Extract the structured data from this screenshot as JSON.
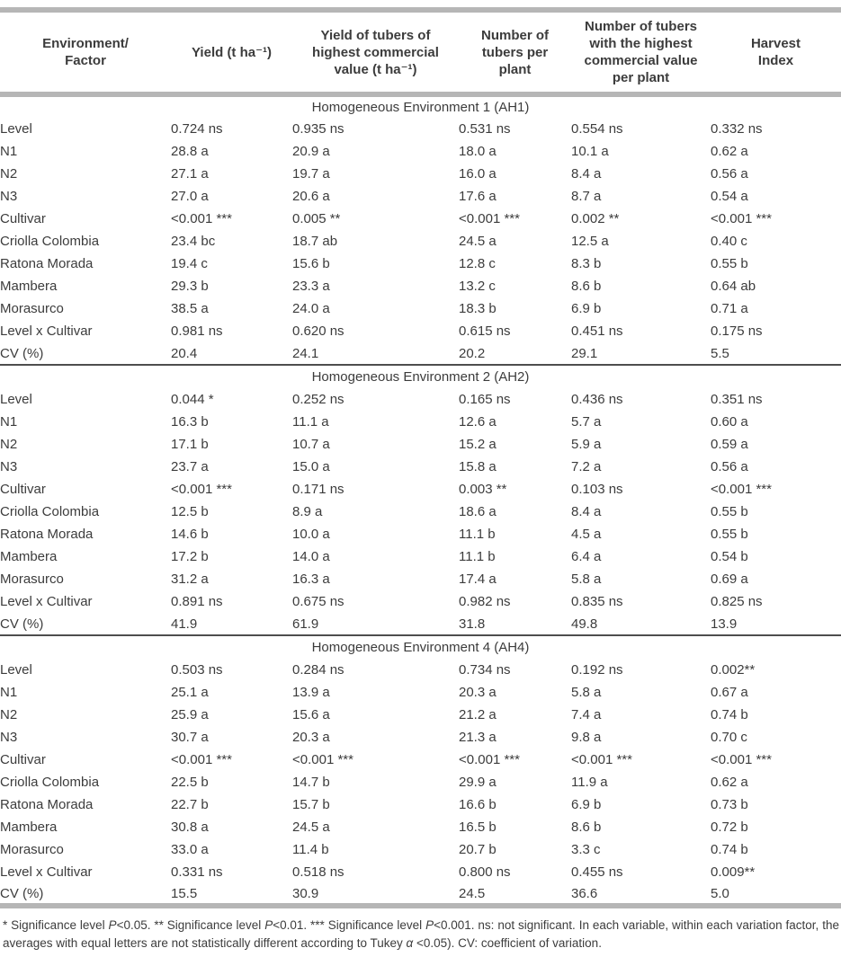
{
  "colors": {
    "text": "#3c3c3c",
    "thick_rule": "#b6b6b6",
    "thin_rule": "#4e4e4e"
  },
  "table": {
    "columns": [
      "Environment/\nFactor",
      "Yield (t ha⁻¹)",
      "Yield of tubers of\nhighest commercial\nvalue (t ha⁻¹)",
      "Number of\ntubers per\nplant",
      "Number of tubers\nwith the highest\ncommercial value\nper plant",
      "Harvest\nIndex"
    ],
    "sections": [
      {
        "title": "Homogeneous Environment 1 (AH1)",
        "rows": [
          [
            "Level",
            "0.724 ns",
            "0.935 ns",
            "0.531 ns",
            "0.554 ns",
            "0.332 ns"
          ],
          [
            "N1",
            "28.8 a",
            "20.9 a",
            "18.0 a",
            "10.1 a",
            "0.62 a"
          ],
          [
            "N2",
            "27.1 a",
            "19.7 a",
            "16.0 a",
            "8.4 a",
            "0.56 a"
          ],
          [
            "N3",
            "27.0 a",
            "20.6 a",
            "17.6 a",
            "8.7 a",
            "0.54 a"
          ],
          [
            "Cultivar",
            "<0.001 ***",
            "0.005 **",
            "<0.001 ***",
            "0.002 **",
            "<0.001 ***"
          ],
          [
            "Criolla Colombia",
            "23.4 bc",
            "18.7 ab",
            "24.5 a",
            "12.5 a",
            "0.40 c"
          ],
          [
            "Ratona Morada",
            "19.4 c",
            "15.6 b",
            "12.8 c",
            "8.3 b",
            "0.55 b"
          ],
          [
            "Mambera",
            "29.3 b",
            "23.3 a",
            "13.2 c",
            "8.6 b",
            "0.64 ab"
          ],
          [
            "Morasurco",
            "38.5 a",
            "24.0 a",
            "18.3 b",
            "6.9 b",
            "0.71 a"
          ],
          [
            "Level x Cultivar",
            "0.981 ns",
            "0.620 ns",
            "0.615 ns",
            "0.451 ns",
            "0.175 ns"
          ],
          [
            "CV (%)",
            "20.4",
            "24.1",
            "20.2",
            "29.1",
            "5.5"
          ]
        ]
      },
      {
        "title": "Homogeneous Environment 2 (AH2)",
        "rows": [
          [
            "Level",
            "0.044 *",
            "0.252 ns",
            "0.165 ns",
            "0.436 ns",
            "0.351 ns"
          ],
          [
            "N1",
            "16.3 b",
            "11.1 a",
            "12.6 a",
            "5.7 a",
            "0.60 a"
          ],
          [
            "N2",
            "17.1 b",
            "10.7 a",
            "15.2 a",
            "5.9 a",
            "0.59 a"
          ],
          [
            "N3",
            "23.7 a",
            "15.0 a",
            "15.8 a",
            "7.2 a",
            "0.56 a"
          ],
          [
            "Cultivar",
            "<0.001 ***",
            "0.171 ns",
            "0.003 **",
            "0.103 ns",
            "<0.001 ***"
          ],
          [
            "Criolla Colombia",
            "12.5 b",
            "8.9 a",
            "18.6 a",
            "8.4 a",
            "0.55 b"
          ],
          [
            "Ratona Morada",
            "14.6 b",
            "10.0 a",
            "11.1 b",
            "4.5 a",
            "0.55 b"
          ],
          [
            "Mambera",
            "17.2 b",
            "14.0 a",
            "11.1 b",
            "6.4 a",
            "0.54 b"
          ],
          [
            "Morasurco",
            "31.2 a",
            "16.3 a",
            "17.4 a",
            "5.8 a",
            "0.69 a"
          ],
          [
            "Level x Cultivar",
            "0.891 ns",
            "0.675 ns",
            "0.982 ns",
            "0.835 ns",
            "0.825 ns"
          ],
          [
            "CV (%)",
            "41.9",
            "61.9",
            "31.8",
            "49.8",
            "13.9"
          ]
        ]
      },
      {
        "title": "Homogeneous Environment 4 (AH4)",
        "rows": [
          [
            "Level",
            "0.503 ns",
            "0.284 ns",
            "0.734 ns",
            "0.192 ns",
            "0.002**"
          ],
          [
            "N1",
            "25.1 a",
            "13.9 a",
            "20.3 a",
            "5.8 a",
            "0.67 a"
          ],
          [
            "N2",
            "25.9 a",
            "15.6 a",
            "21.2 a",
            "7.4 a",
            "0.74 b"
          ],
          [
            "N3",
            "30.7 a",
            "20.3 a",
            "21.3 a",
            "9.8 a",
            "0.70 c"
          ],
          [
            "Cultivar",
            "<0.001 ***",
            "<0.001 ***",
            "<0.001 ***",
            "<0.001 ***",
            "<0.001 ***"
          ],
          [
            "Criolla Colombia",
            "22.5 b",
            "14.7 b",
            "29.9 a",
            "11.9 a",
            "0.62 a"
          ],
          [
            "Ratona Morada",
            "22.7 b",
            "15.7 b",
            "16.6 b",
            "6.9 b",
            "0.73 b"
          ],
          [
            "Mambera",
            "30.8 a",
            "24.5 a",
            "16.5 b",
            "8.6 b",
            "0.72 b"
          ],
          [
            "Morasurco",
            "33.0 a",
            "11.4 b",
            "20.7 b",
            "3.3 c",
            "0.74 b"
          ],
          [
            "Level x Cultivar",
            "0.331 ns",
            "0.518 ns",
            "0.800 ns",
            "0.455 ns",
            "0.009**"
          ],
          [
            "CV (%)",
            "15.5",
            "30.9",
            "24.5",
            "36.6",
            "5.0"
          ]
        ]
      }
    ]
  },
  "footnote": {
    "parts": [
      {
        "t": "* Significance level ",
        "i": false
      },
      {
        "t": "P",
        "i": true
      },
      {
        "t": "<0.05. ** Significance level ",
        "i": false
      },
      {
        "t": "P",
        "i": true
      },
      {
        "t": "<0.01. *** Significance level ",
        "i": false
      },
      {
        "t": "P",
        "i": true
      },
      {
        "t": "<0.001. ns: not significant. In each variable, within each variation factor, the averages with equal letters are not statistically different according to Tukey ",
        "i": false
      },
      {
        "t": "α",
        "i": true
      },
      {
        "t": " <0.05). CV: coefficient of variation.",
        "i": false
      }
    ]
  }
}
